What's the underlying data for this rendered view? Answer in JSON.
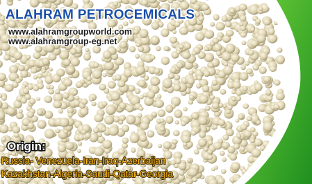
{
  "header": {
    "title": "ALAHRAM PETROCEMICALS",
    "urls": [
      "www.alahramgroupworld.com",
      "www.alahramgroup-eg.net"
    ]
  },
  "origin": {
    "label": "Origin:",
    "countries": [
      "Russia- Venezuela-Iran-Iraq-Azerbaijan",
      "Kazakhstan-Algeria-Saudi-Qatar-Georgia"
    ]
  }
}
